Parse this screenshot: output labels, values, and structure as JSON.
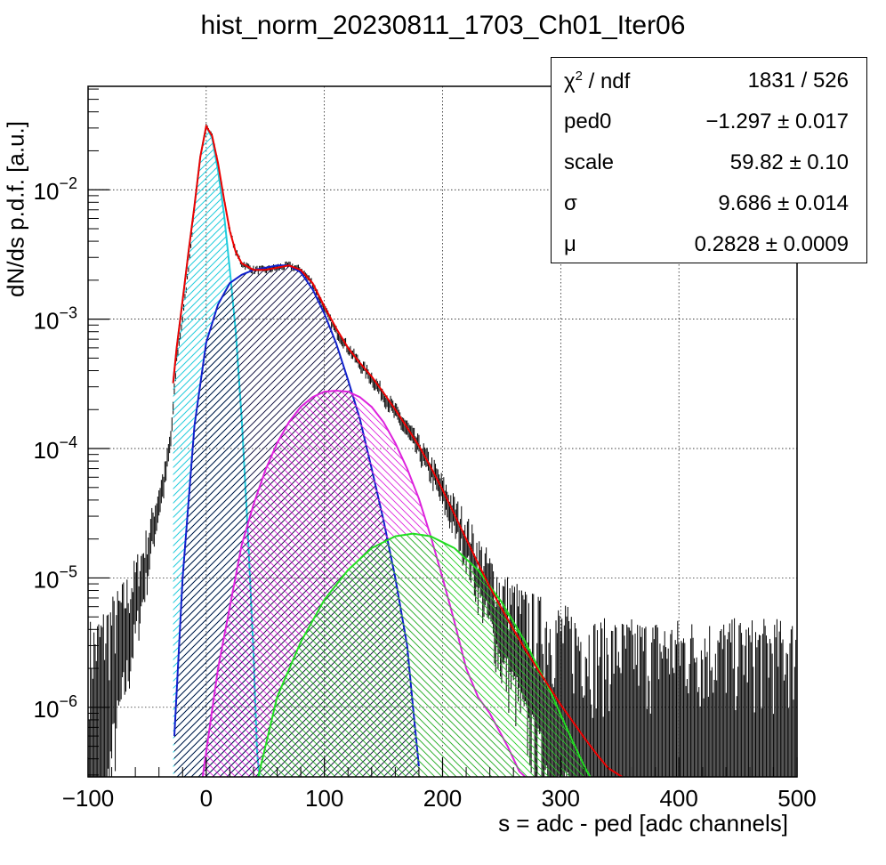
{
  "chart_data": {
    "type": "line",
    "title": "hist_norm_20230811_1703_Ch01_Iter06",
    "xlabel": "s = adc - ped [adc channels]",
    "ylabel": "dN/ds p.d.f. [a.u.]",
    "xlim": [
      -100,
      500
    ],
    "ylim": [
      2.9e-07,
      0.063
    ],
    "yscale": "log",
    "grid": true,
    "x_ticks": [
      -100,
      0,
      100,
      200,
      300,
      400,
      500
    ],
    "x_tick_labels": [
      "−100",
      "0",
      "100",
      "200",
      "300",
      "400",
      "500"
    ],
    "y_ticks": [
      1e-06,
      1e-05,
      0.0001,
      0.001,
      0.01
    ],
    "y_tick_labels": [
      {
        "base": "10",
        "exp": "−6"
      },
      {
        "base": "10",
        "exp": "−5"
      },
      {
        "base": "10",
        "exp": "−4"
      },
      {
        "base": "10",
        "exp": "−3"
      },
      {
        "base": "10",
        "exp": "−2"
      }
    ],
    "histogram": {
      "color": "#000000",
      "points": [
        [
          -95,
          1.5e-06
        ],
        [
          -85,
          2e-06
        ],
        [
          -75,
          3e-06
        ],
        [
          -65,
          5e-06
        ],
        [
          -55,
          1e-05
        ],
        [
          -50,
          1.5e-05
        ],
        [
          -45,
          2.5e-05
        ],
        [
          -40,
          4e-05
        ],
        [
          -35,
          6e-05
        ],
        [
          -30,
          0.00012
        ],
        [
          -28,
          0.0002
        ],
        [
          -25,
          0.0005
        ],
        [
          -20,
          0.001
        ],
        [
          -15,
          0.0025
        ],
        [
          -10,
          0.007
        ],
        [
          -5,
          0.018
        ],
        [
          0,
          0.031
        ],
        [
          5,
          0.027
        ],
        [
          10,
          0.016
        ],
        [
          15,
          0.0085
        ],
        [
          20,
          0.0048
        ],
        [
          25,
          0.0033
        ],
        [
          30,
          0.0027
        ],
        [
          40,
          0.0024
        ],
        [
          50,
          0.0024
        ],
        [
          60,
          0.0025
        ],
        [
          70,
          0.0026
        ],
        [
          80,
          0.0024
        ],
        [
          90,
          0.0019
        ],
        [
          100,
          0.0012
        ],
        [
          110,
          0.0008
        ],
        [
          120,
          0.0006
        ],
        [
          130,
          0.00045
        ],
        [
          140,
          0.00035
        ],
        [
          150,
          0.00026
        ],
        [
          160,
          0.00019
        ],
        [
          170,
          0.00014
        ],
        [
          180,
          0.0001
        ],
        [
          190,
          7e-05
        ],
        [
          200,
          4.6e-05
        ],
        [
          210,
          3e-05
        ],
        [
          220,
          2e-05
        ],
        [
          230,
          1.2e-05
        ],
        [
          240,
          8e-06
        ],
        [
          250,
          5e-06
        ],
        [
          260,
          4e-06
        ],
        [
          270,
          3e-06
        ],
        [
          280,
          2.5e-06
        ],
        [
          300,
          2e-06
        ],
        [
          330,
          1.5e-06
        ],
        [
          360,
          1.5e-06
        ],
        [
          400,
          1.5e-06
        ],
        [
          450,
          1.5e-06
        ],
        [
          500,
          1.5e-06
        ]
      ]
    },
    "series": [
      {
        "color": "#ee0000",
        "fill": false,
        "points": [
          [
            -28,
            0.00032
          ],
          [
            -25,
            0.0006
          ],
          [
            -20,
            0.0014
          ],
          [
            -15,
            0.0033
          ],
          [
            -10,
            0.0075
          ],
          [
            -5,
            0.018
          ],
          [
            0,
            0.031
          ],
          [
            5,
            0.026
          ],
          [
            10,
            0.016
          ],
          [
            15,
            0.0085
          ],
          [
            20,
            0.0048
          ],
          [
            25,
            0.0033
          ],
          [
            30,
            0.0027
          ],
          [
            40,
            0.0024
          ],
          [
            50,
            0.0024
          ],
          [
            60,
            0.0025
          ],
          [
            70,
            0.0026
          ],
          [
            80,
            0.0024
          ],
          [
            90,
            0.0019
          ],
          [
            100,
            0.00125
          ],
          [
            110,
            0.00085
          ],
          [
            120,
            0.0006
          ],
          [
            130,
            0.00046
          ],
          [
            140,
            0.00036
          ],
          [
            150,
            0.00027
          ],
          [
            160,
            0.0002
          ],
          [
            170,
            0.000145
          ],
          [
            180,
            0.000105
          ],
          [
            190,
            7.2e-05
          ],
          [
            200,
            4.8e-05
          ],
          [
            210,
            3.1e-05
          ],
          [
            220,
            2e-05
          ],
          [
            230,
            1.3e-05
          ],
          [
            240,
            8.5e-06
          ],
          [
            250,
            5.8e-06
          ],
          [
            260,
            4e-06
          ],
          [
            270,
            2.8e-06
          ],
          [
            280,
            2e-06
          ],
          [
            290,
            1.45e-06
          ],
          [
            300,
            1.05e-06
          ],
          [
            310,
            7.8e-07
          ],
          [
            320,
            5.8e-07
          ],
          [
            330,
            4.4e-07
          ],
          [
            340,
            3.4e-07
          ],
          [
            352,
            2.9e-07
          ]
        ]
      },
      {
        "color": "#22ccdd",
        "fill": true,
        "hatch": "hatch-cyan",
        "points": [
          [
            -28,
            0.00032
          ],
          [
            -25,
            0.0006
          ],
          [
            -20,
            0.0014
          ],
          [
            -15,
            0.0033
          ],
          [
            -10,
            0.0075
          ],
          [
            -5,
            0.018
          ],
          [
            0,
            0.031
          ],
          [
            5,
            0.025
          ],
          [
            10,
            0.014
          ],
          [
            15,
            0.0065
          ],
          [
            20,
            0.0024
          ],
          [
            25,
            0.0008
          ],
          [
            30,
            0.00017
          ],
          [
            35,
            2.5e-05
          ],
          [
            40,
            2.6e-06
          ],
          [
            43,
            4.5e-07
          ],
          [
            45,
            2.9e-07
          ]
        ]
      },
      {
        "color": "#1020cc",
        "fill": true,
        "hatch": "hatch-blue",
        "points": [
          [
            -27,
            6e-07
          ],
          [
            -20,
            1e-05
          ],
          [
            -10,
            0.00015
          ],
          [
            0,
            0.00066
          ],
          [
            10,
            0.0013
          ],
          [
            20,
            0.0019
          ],
          [
            30,
            0.0022
          ],
          [
            40,
            0.0024
          ],
          [
            50,
            0.0025
          ],
          [
            60,
            0.0026
          ],
          [
            70,
            0.0026
          ],
          [
            80,
            0.0023
          ],
          [
            90,
            0.0017
          ],
          [
            100,
            0.0011
          ],
          [
            110,
            0.00065
          ],
          [
            120,
            0.00034
          ],
          [
            130,
            0.00017
          ],
          [
            140,
            7e-05
          ],
          [
            150,
            2.8e-05
          ],
          [
            160,
            1e-05
          ],
          [
            170,
            3e-06
          ],
          [
            175,
            1e-06
          ],
          [
            180,
            3.5e-07
          ]
        ]
      },
      {
        "color": "#dd22dd",
        "fill": true,
        "hatch": "hatch-magenta",
        "points": [
          [
            -3,
            2.9e-07
          ],
          [
            10,
            2e-06
          ],
          [
            20,
            6e-06
          ],
          [
            30,
            1.8e-05
          ],
          [
            40,
            3.7e-05
          ],
          [
            50,
            6.8e-05
          ],
          [
            60,
            0.00011
          ],
          [
            70,
            0.00016
          ],
          [
            80,
            0.00021
          ],
          [
            90,
            0.00025
          ],
          [
            100,
            0.000275
          ],
          [
            110,
            0.00028
          ],
          [
            120,
            0.000275
          ],
          [
            130,
            0.00025
          ],
          [
            140,
            0.00021
          ],
          [
            150,
            0.00016
          ],
          [
            160,
            0.00011
          ],
          [
            170,
            7e-05
          ],
          [
            180,
            4.1e-05
          ],
          [
            190,
            2.1e-05
          ],
          [
            200,
            1e-05
          ],
          [
            210,
            4.6e-06
          ],
          [
            220,
            2e-06
          ],
          [
            230,
            1.2e-06
          ],
          [
            240,
            9e-07
          ],
          [
            255,
            5e-07
          ],
          [
            265,
            3.2e-07
          ],
          [
            270,
            2.9e-07
          ]
        ]
      },
      {
        "color": "#22dd22",
        "fill": true,
        "hatch": "hatch-green",
        "points": [
          [
            44,
            2.9e-07
          ],
          [
            60,
            1.2e-06
          ],
          [
            80,
            3.2e-06
          ],
          [
            100,
            6.8e-06
          ],
          [
            120,
            1.15e-05
          ],
          [
            140,
            1.7e-05
          ],
          [
            160,
            2.1e-05
          ],
          [
            175,
            2.2e-05
          ],
          [
            190,
            2.1e-05
          ],
          [
            210,
            1.7e-05
          ],
          [
            230,
            1.15e-05
          ],
          [
            250,
            6.5e-06
          ],
          [
            270,
            3.2e-06
          ],
          [
            290,
            1.4e-06
          ],
          [
            310,
            5.5e-07
          ],
          [
            320,
            3.5e-07
          ],
          [
            325,
            2.9e-07
          ]
        ]
      }
    ],
    "legend_position": "top-right"
  },
  "stats": {
    "rows": [
      {
        "key_main": "χ",
        "key_sup": "2",
        "key_rest": " / ndf",
        "value": "1831 / 526"
      },
      {
        "key_main": "ped0",
        "value": "−1.297 ± 0.017"
      },
      {
        "key_main": "scale",
        "value": "59.82 ± 0.10"
      },
      {
        "key_main": "σ",
        "value": "9.686 ± 0.014"
      },
      {
        "key_main": "μ",
        "value": "0.2828 ± 0.0009"
      }
    ]
  }
}
